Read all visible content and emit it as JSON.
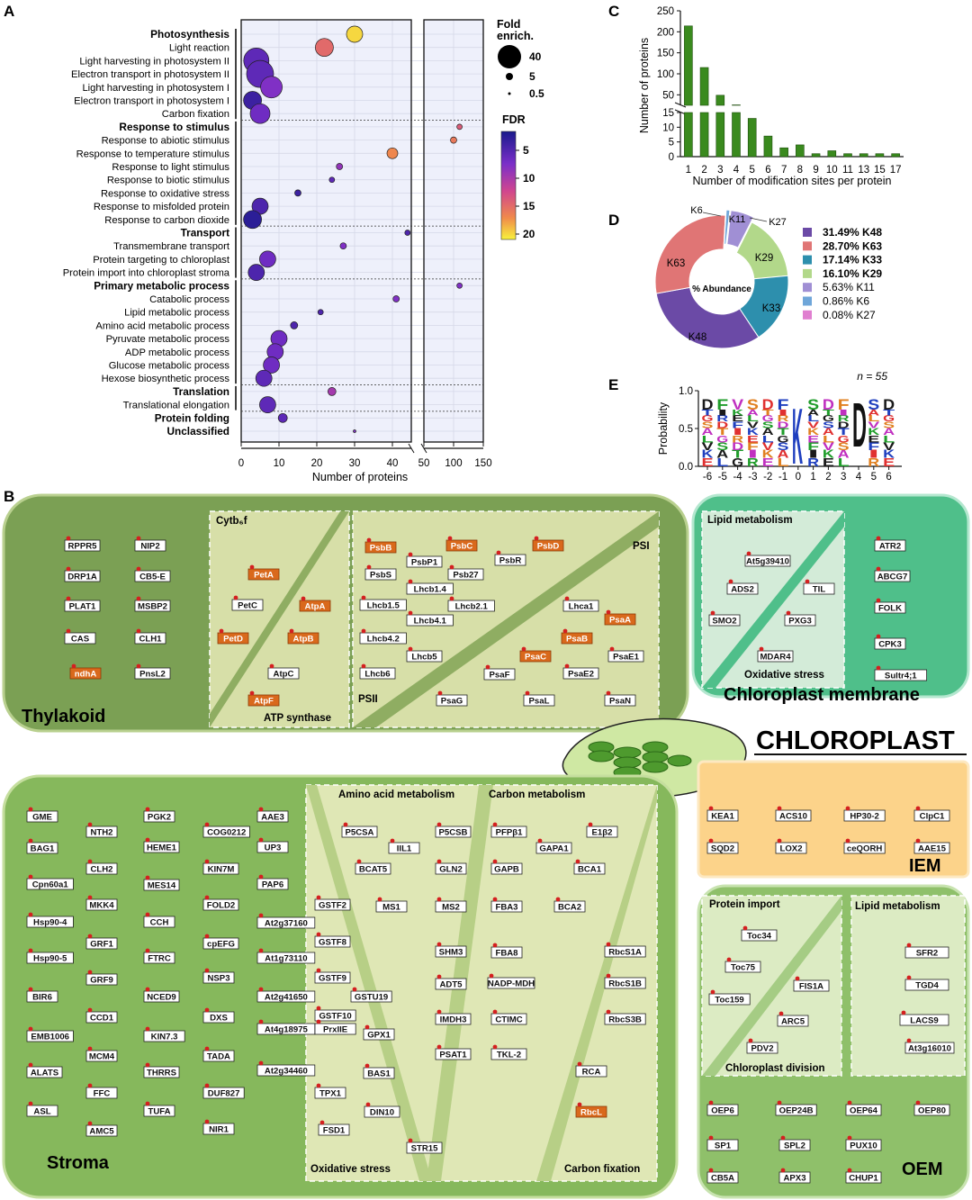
{
  "panels": {
    "A": "A",
    "B": "B",
    "C": "C",
    "D": "D",
    "E": "E"
  },
  "chart_data": [
    {
      "panel": "A",
      "type": "scatter",
      "xlabel": "Number of proteins",
      "x_ticks": [
        "0",
        "10",
        "20",
        "30",
        "40",
        "50",
        "100",
        "150"
      ],
      "x_break": [
        45,
        50
      ],
      "legend_size_title": "Fold\nenrich.",
      "legend_size": [
        {
          "label": "40",
          "value": 40
        },
        {
          "label": "5",
          "value": 5
        },
        {
          "label": "0.5",
          "value": 0.5
        }
      ],
      "legend_color_title": "FDR",
      "legend_color_ticks": [
        "5",
        "10",
        "15",
        "20"
      ],
      "color_range": [
        2,
        21
      ],
      "categories": [
        {
          "label": "Photosynthesis",
          "bold": true,
          "x": 30,
          "size": 9,
          "fdr": 20
        },
        {
          "label": "Light reaction",
          "x": 22,
          "size": 10,
          "fdr": 15
        },
        {
          "label": "Light harvesting in photosystem II",
          "x": 4,
          "size": 14,
          "fdr": 6
        },
        {
          "label": "Electron transport in photosystem II",
          "x": 5,
          "size": 15,
          "fdr": 6
        },
        {
          "label": "Light harvesting in photosystem I",
          "x": 8,
          "size": 12,
          "fdr": 8
        },
        {
          "label": "Electron transport in photosystem I",
          "x": 3,
          "size": 10,
          "fdr": 4
        },
        {
          "label": "Carbon fixation",
          "x": 5,
          "size": 11,
          "fdr": 7
        },
        {
          "label": "Response to stimulus",
          "bold": true,
          "x": 110,
          "size": 3,
          "fdr": 14
        },
        {
          "label": "Response to abiotic stimulus",
          "x": 100,
          "size": 3.5,
          "fdr": 16
        },
        {
          "label": "Response to temperature stimulus",
          "x": 40,
          "size": 6,
          "fdr": 17
        },
        {
          "label": "Response to light stimulus",
          "x": 26,
          "size": 3.5,
          "fdr": 9
        },
        {
          "label": "Response to biotic stimulus",
          "x": 24,
          "size": 3,
          "fdr": 6
        },
        {
          "label": "Response to oxidative stress",
          "x": 15,
          "size": 3.5,
          "fdr": 4
        },
        {
          "label": "Response to misfolded protein",
          "x": 5,
          "size": 9,
          "fdr": 5
        },
        {
          "label": "Response to carbon dioxide",
          "x": 3,
          "size": 10,
          "fdr": 3
        },
        {
          "label": "Transport",
          "bold": true,
          "x": 44,
          "size": 3,
          "fdr": 5
        },
        {
          "label": "Transmembrane transport",
          "x": 27,
          "size": 3.5,
          "fdr": 8
        },
        {
          "label": "Protein targeting to chloroplast",
          "x": 7,
          "size": 9,
          "fdr": 7
        },
        {
          "label": "Protein import into chloroplast stroma",
          "x": 4,
          "size": 9,
          "fdr": 5
        },
        {
          "label": "Primary metabolic process",
          "bold": true,
          "x": 110,
          "size": 3,
          "fdr": 8
        },
        {
          "label": "Catabolic process",
          "x": 41,
          "size": 3.5,
          "fdr": 8
        },
        {
          "label": "Lipid metabolic process",
          "x": 21,
          "size": 3,
          "fdr": 5
        },
        {
          "label": "Amino acid metabolic process",
          "x": 14,
          "size": 4,
          "fdr": 5
        },
        {
          "label": "Pyruvate metabolic process",
          "x": 10,
          "size": 9,
          "fdr": 7
        },
        {
          "label": "ADP metabolic process",
          "x": 9,
          "size": 9,
          "fdr": 7
        },
        {
          "label": "Glucose metabolic process",
          "x": 8,
          "size": 9,
          "fdr": 7
        },
        {
          "label": "Hexose biosynthetic process",
          "x": 6,
          "size": 9,
          "fdr": 6
        },
        {
          "label": "Translation",
          "bold": true,
          "x": 24,
          "size": 4.5,
          "fdr": 10
        },
        {
          "label": "Translational elongation",
          "x": 7,
          "size": 9,
          "fdr": 6
        },
        {
          "label": "Protein folding",
          "bold": true,
          "x": 11,
          "size": 5,
          "fdr": 6
        },
        {
          "label": "Unclassified",
          "bold": true,
          "x": 30,
          "size": 1.5,
          "fdr": 8
        }
      ]
    },
    {
      "panel": "C",
      "type": "bar",
      "xlabel": "Number of modification sites per protein",
      "ylabel": "Number of proteins",
      "categories": [
        "1",
        "2",
        "3",
        "4",
        "5",
        "6",
        "7",
        "8",
        "9",
        "10",
        "11",
        "13",
        "15",
        "17"
      ],
      "values": [
        214,
        115,
        49,
        26,
        13,
        7,
        3,
        4,
        1,
        2,
        1,
        1,
        1,
        1
      ],
      "y_ticks_upper": [
        "50",
        "100",
        "150",
        "200",
        "250"
      ],
      "y_ticks_lower": [
        "0",
        "5",
        "10",
        "15"
      ],
      "color": "#3a8a1e"
    },
    {
      "panel": "D",
      "type": "pie",
      "center_label": "% Abundance",
      "slices": [
        {
          "label": "K48",
          "value": 31.49,
          "legend": "31.49% K48",
          "bold": true,
          "color": "#6b4aa6"
        },
        {
          "label": "K63",
          "value": 28.7,
          "legend": "28.70% K63",
          "bold": true,
          "color": "#e07575"
        },
        {
          "label": "K33",
          "value": 17.14,
          "legend": "17.14% K33",
          "bold": true,
          "color": "#2d8fad"
        },
        {
          "label": "K29",
          "value": 16.1,
          "legend": "16.10% K29",
          "bold": true,
          "color": "#b2d88a"
        },
        {
          "label": "K11",
          "value": 5.63,
          "legend": "5.63%   K11",
          "bold": false,
          "color": "#a08fd4"
        },
        {
          "label": "K6",
          "value": 0.86,
          "legend": "0.86%   K6",
          "bold": false,
          "color": "#6fa6d9"
        },
        {
          "label": "K27",
          "value": 0.08,
          "legend": "0.08%   K27",
          "bold": false,
          "color": "#e07fd0"
        }
      ]
    },
    {
      "panel": "E",
      "type": "other",
      "annotation": "n = 55",
      "ylabel": "Probability",
      "y_ticks": [
        "0.0",
        "0.5",
        "1.0"
      ],
      "x_ticks": [
        "-6",
        "-5",
        "-4",
        "-3",
        "-2",
        "-1",
        "0",
        "1",
        "2",
        "3",
        "4",
        "5",
        "6"
      ],
      "center_letter": "K",
      "position4_letter": "D"
    }
  ],
  "panel_b": {
    "title": "CHLOROPLAST",
    "thylakoid": {
      "label": "Thylakoid",
      "proteins": [
        "RPPR5",
        "NIP2",
        "DRP1A",
        "CB5-E",
        "PLAT1",
        "MSBP2",
        "CAS",
        "CLH1",
        "ndhA",
        "PnsL2"
      ],
      "cytb6f": {
        "label": "Cytb₆f",
        "proteins": [
          "PetA",
          "PetC",
          "PetD"
        ]
      },
      "atp_synthase": {
        "label": "ATP synthase",
        "proteins": [
          "AtpA",
          "AtpB",
          "AtpC",
          "AtpF"
        ]
      },
      "psii": {
        "label": "PSII",
        "proteins": [
          "PsbB",
          "PsbC",
          "PsbD",
          "PsbP1",
          "PsbR",
          "PsbS",
          "Psb27",
          "Lhcb1.4",
          "Lhcb1.5",
          "Lhcb2.1",
          "Lhcb4.1",
          "Lhcb4.2",
          "Lhcb5",
          "Lhcb6"
        ]
      },
      "psi": {
        "label": "PSI",
        "proteins": [
          "Lhca1",
          "PsaA",
          "PsaB",
          "PsaC",
          "PsaE1",
          "PsaE2",
          "PsaF",
          "PsaG",
          "PsaL",
          "PsaN"
        ]
      }
    },
    "chloroplast_membrane": {
      "label": "Chloroplast membrane",
      "lipid_metabolism": {
        "label": "Lipid  metabolism",
        "proteins": [
          "At5g39410",
          "ADS2",
          "TIL"
        ]
      },
      "oxidative_stress": {
        "label": "Oxidative stress",
        "proteins": [
          "SMO2",
          "PXG3",
          "MDAR4"
        ]
      },
      "proteins": [
        "ATR2",
        "ABCG7",
        "FOLK",
        "CPK3",
        "Sultr4;1"
      ]
    },
    "stroma": {
      "label": "Stroma",
      "proteins": [
        "GME",
        "NTH2",
        "PGK2",
        "COG0212",
        "AAE3",
        "BAG1",
        "CLH2",
        "HEME1",
        "KIN7M",
        "UP3",
        "Cpn60a1",
        "MKK4",
        "MES14",
        "FOLD2",
        "PAP6",
        "Hsp90-4",
        "CCH",
        "GRF1",
        "cpEFG",
        "At2g37160",
        "Hsp90-5",
        "FTRC",
        "NSP3",
        "At1g73110",
        "GRF9",
        "NCED9",
        "BIR6",
        "DXS",
        "At2g41650",
        "CCD1",
        "EMB1006",
        "KIN7.3",
        "At4g18975",
        "MCM4",
        "TADA",
        "ALATS",
        "THRRS",
        "At2g34460",
        "FFC",
        "DUF827",
        "ASL",
        "TUFA",
        "AMC5",
        "NIR1"
      ],
      "amino_acid": {
        "label": "Amino acid metabolism",
        "proteins": [
          "P5CSA",
          "P5CSB",
          "IIL1",
          "BCAT5",
          "GLN2",
          "MS1",
          "MS2",
          "GSTF2",
          "GSTF8",
          "SHM3",
          "GSTF9",
          "ADT5",
          "GSTU19",
          "IMDH3",
          "PSAT1"
        ]
      },
      "carbon": {
        "label": "Carbon metabolism",
        "proteins": [
          "PFPβ1",
          "GAPA1",
          "E1β2",
          "GAPB",
          "BCA1",
          "FBA3",
          "BCA2",
          "FBA8",
          "NADP-MDH",
          "CTIMC",
          "TKL-2",
          "RbcS1A",
          "RbcS1B",
          "RbcS3B"
        ]
      },
      "oxidative_stress": {
        "label": "Oxidative stress",
        "proteins": [
          "GSTF10",
          "GPX1",
          "PrxIIE",
          "BAS1",
          "TPX1",
          "DIN10",
          "FSD1",
          "STR15"
        ]
      },
      "carbon_fixation": {
        "label": "Carbon fixation",
        "proteins": [
          "RCA",
          "RbcL"
        ]
      }
    },
    "iem": {
      "label": "IEM",
      "proteins": [
        "KEA1",
        "ACS10",
        "HP30-2",
        "ClpC1",
        "SQD2",
        "LOX2",
        "ceQORH",
        "AAE15"
      ]
    },
    "oem": {
      "label": "OEM",
      "protein_import": {
        "label": "Protein import",
        "proteins": [
          "Toc34",
          "Toc75",
          "Toc159"
        ]
      },
      "chloroplast_division": {
        "label": "Chloroplast division",
        "proteins": [
          "FIS1A",
          "ARC5",
          "PDV2"
        ]
      },
      "lipid_metabolism": {
        "label": "Lipid metabolism",
        "proteins": [
          "SFR2",
          "TGD4",
          "LACS9",
          "At3g16010"
        ]
      },
      "proteins": [
        "OEP6",
        "OEP24B",
        "OEP64",
        "OEP80",
        "SP1",
        "SPL2",
        "PUX10",
        "CB5A",
        "APX3",
        "CHUP1"
      ]
    }
  }
}
